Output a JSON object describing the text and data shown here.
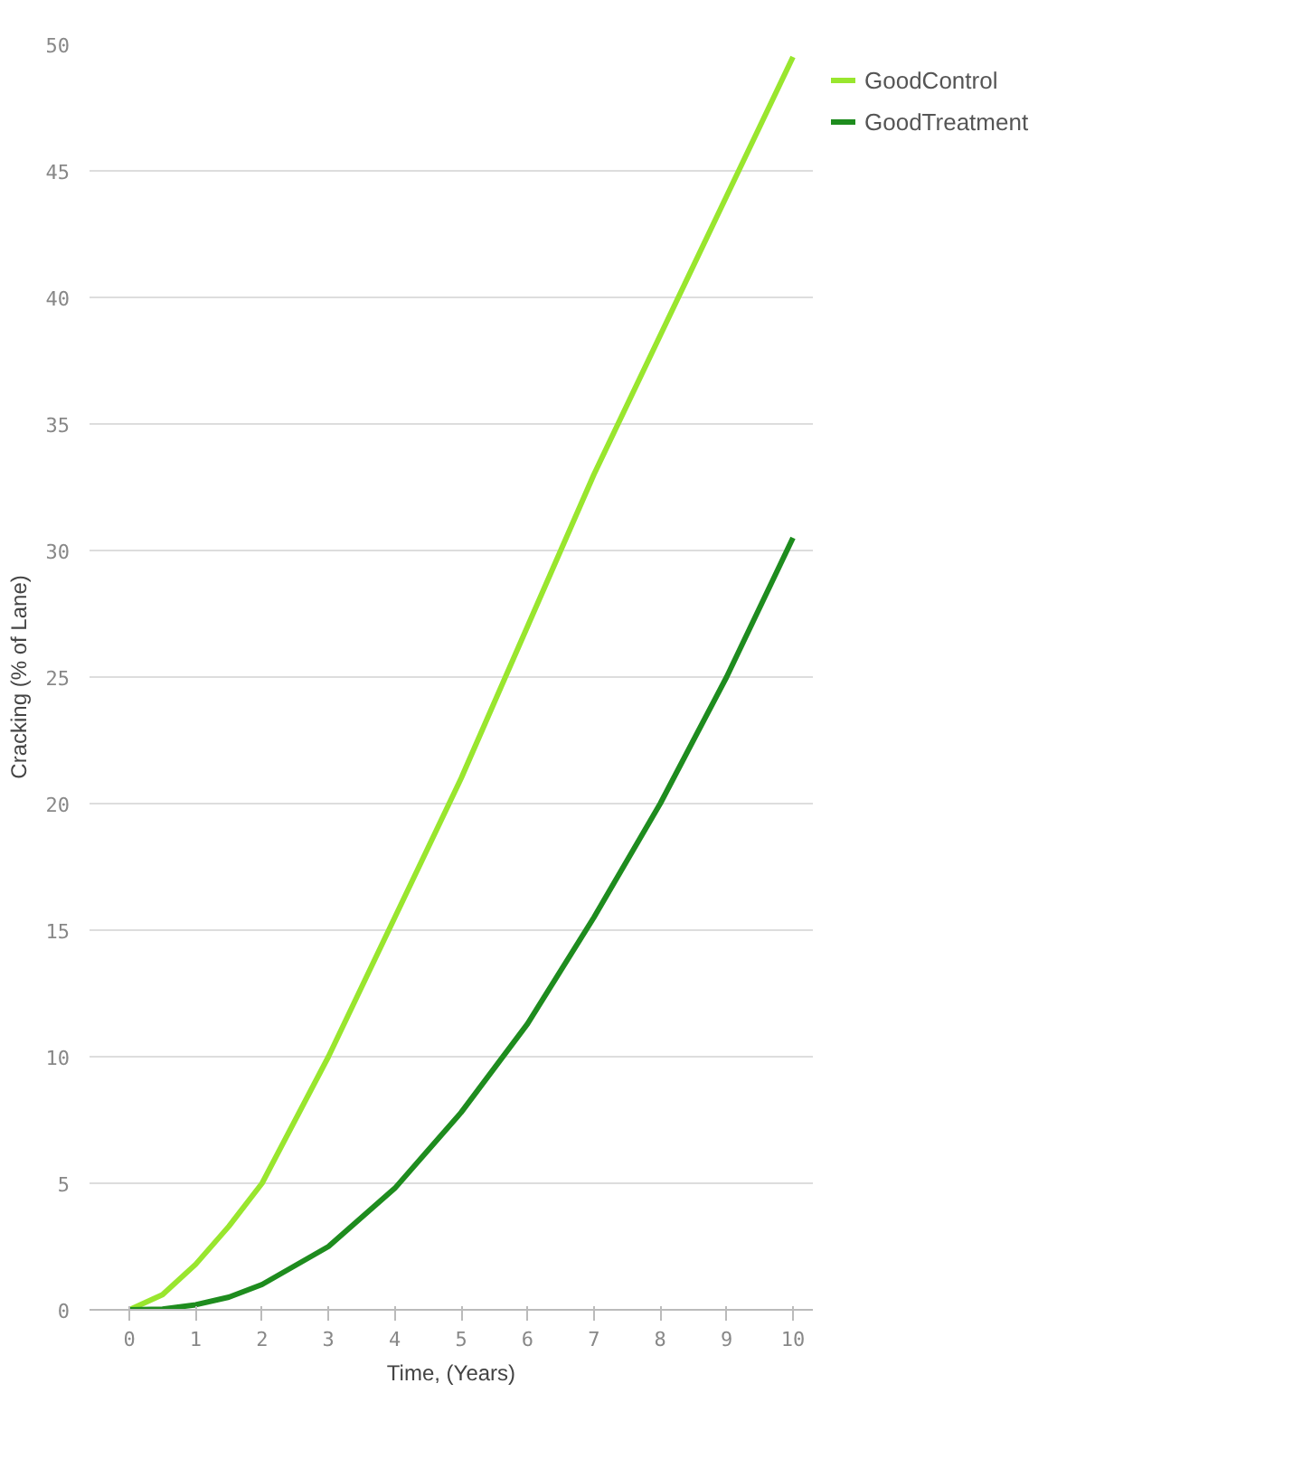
{
  "chart_data": {
    "type": "line",
    "xlabel": "Time, (Years)",
    "ylabel": "Cracking (% of Lane)",
    "x": [
      0,
      0.5,
      1,
      1.5,
      2,
      3,
      4,
      5,
      6,
      7,
      8,
      9,
      10
    ],
    "series": [
      {
        "name": "GoodControl",
        "color": "#99e62e",
        "values": [
          0,
          0.6,
          1.8,
          3.3,
          5,
          10,
          15.5,
          21,
          27,
          33,
          38.5,
          44,
          49.5
        ]
      },
      {
        "name": "GoodTreatment",
        "color": "#1e8c1e",
        "values": [
          0,
          0.03,
          0.2,
          0.5,
          1,
          2.5,
          4.8,
          7.8,
          11.3,
          15.5,
          20,
          25,
          30.5
        ]
      }
    ],
    "xlim": [
      -0.6,
      10.3
    ],
    "xticks": [
      0,
      1,
      2,
      3,
      4,
      5,
      6,
      7,
      8,
      9,
      10
    ],
    "ylim": [
      0,
      50
    ],
    "yticks": [
      0,
      5,
      10,
      15,
      20,
      25,
      30,
      35,
      40,
      45,
      50
    ],
    "grid": "y",
    "legend": "top right",
    "marker": "none",
    "line_style": "solid"
  }
}
